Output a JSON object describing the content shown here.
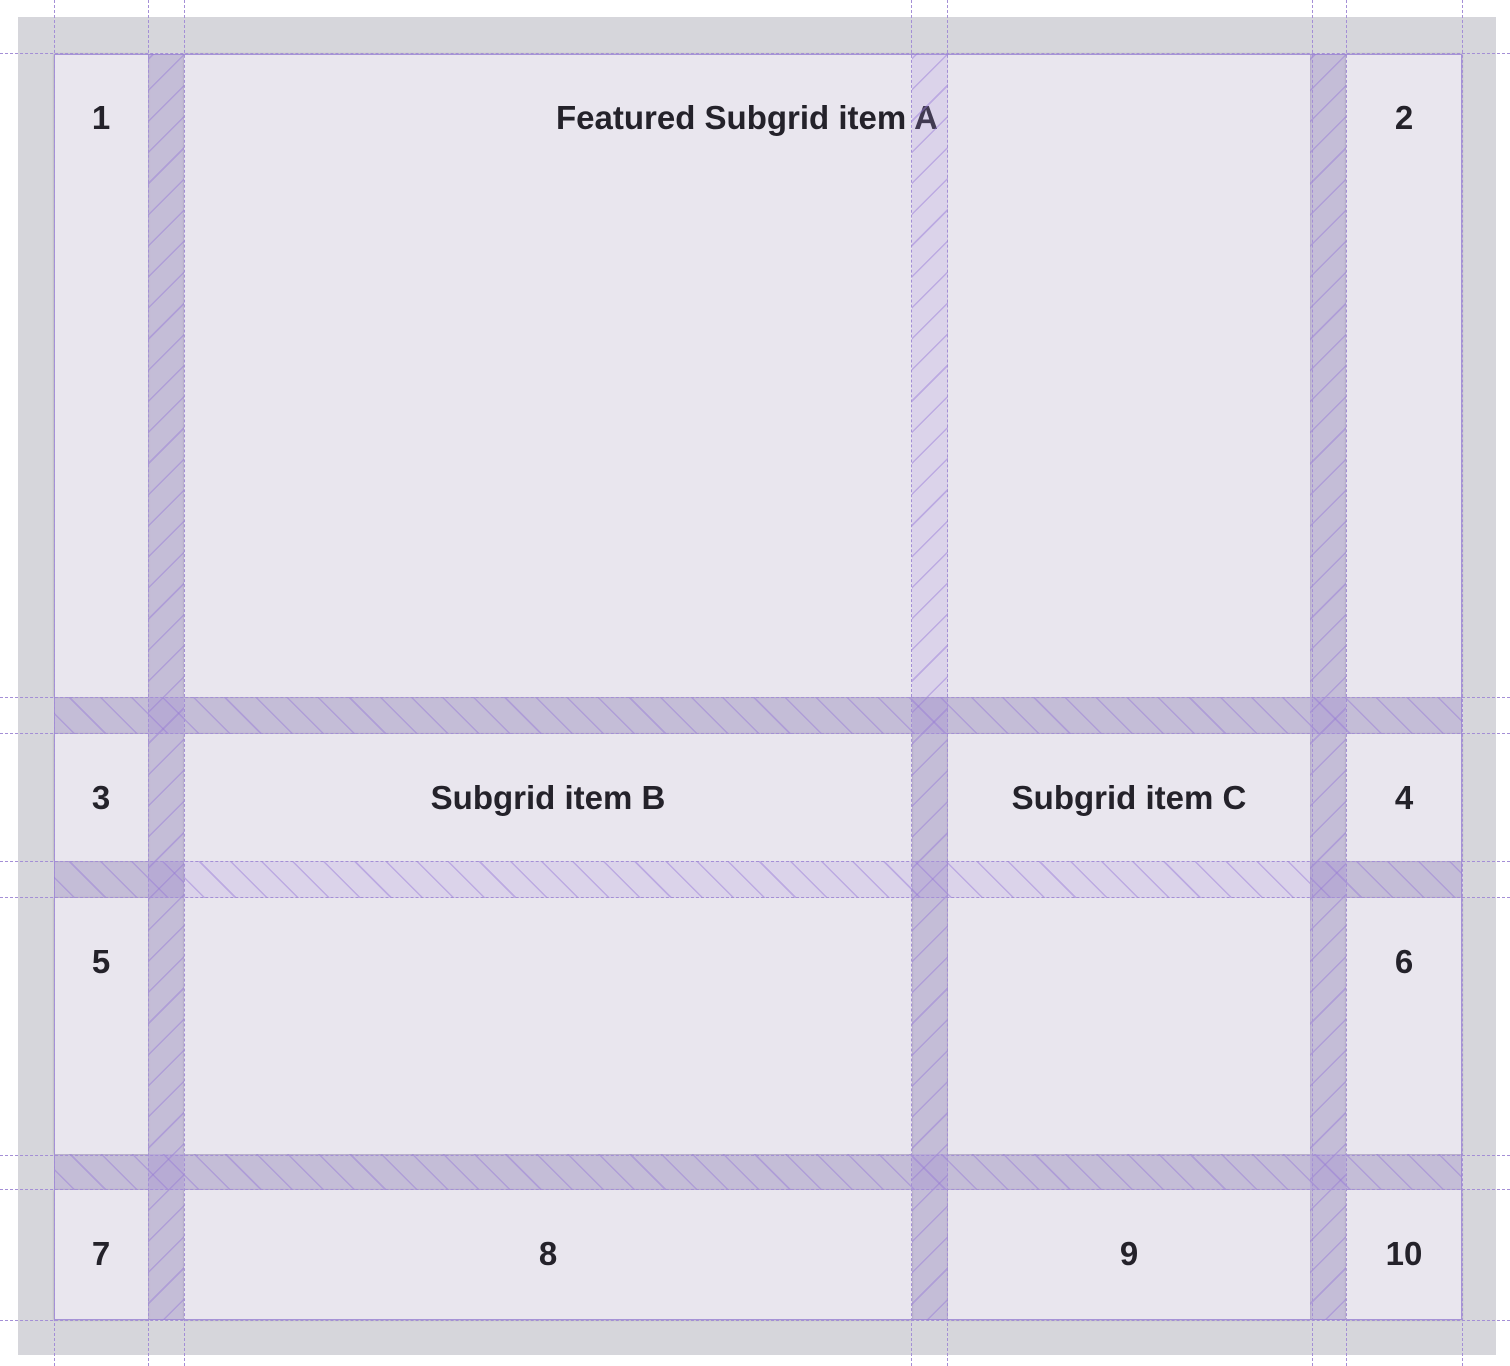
{
  "items": {
    "n1": "1",
    "featured_a": "Featured Subgrid item A",
    "n2": "2",
    "n3": "3",
    "b": "Subgrid item B",
    "c": "Subgrid item C",
    "n4": "4",
    "n5": "5",
    "n6": "6",
    "n7": "7",
    "n8": "8",
    "n9": "9",
    "n10": "10"
  },
  "colors": {
    "overlay": "#a48fd6",
    "cell_background": "#e9e6ee",
    "container_background": "#d6d6db"
  }
}
